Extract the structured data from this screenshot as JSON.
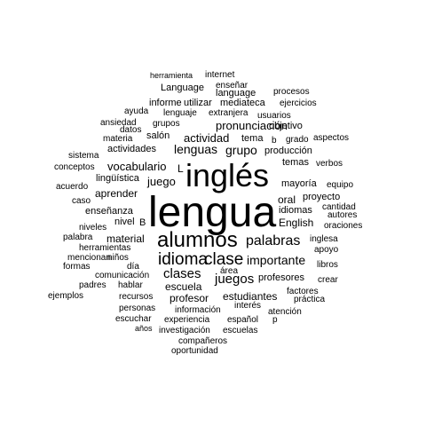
{
  "text_color": "#000000",
  "background": "#ffffff",
  "words": [
    "lengua",
    "inglés",
    "alumnos",
    "idioma",
    "clase",
    "palabras",
    "importante",
    "clases",
    "juegos",
    "escuela",
    "estudiantes",
    "profesor",
    "profesores",
    "actividad",
    "lenguas",
    "grupo",
    "pronunciación",
    "vocabulario",
    "juego",
    "aprender",
    "enseñanza",
    "material",
    "actividades",
    "salón",
    "tema",
    "mayoría",
    "oral",
    "English",
    "idiomas",
    "lingüística",
    "producción",
    "objetivo",
    "internet",
    "herramienta",
    "enseñar",
    "Language",
    "language",
    "procesos",
    "informe",
    "utilizar",
    "mediateca",
    "ejercicios",
    "ayuda",
    "lenguaje",
    "extranjera",
    "usuarios",
    "ansiedad",
    "grupos",
    "datos",
    "materia",
    "grado",
    "aspectos",
    "sistema",
    "temas",
    "verbos",
    "conceptos",
    "L",
    "acuerdo",
    "equipo",
    "proyecto",
    "caso",
    "cantidad",
    "autores",
    "nivel",
    "B",
    "niveles",
    "oraciones",
    "palabra",
    "inglesa",
    "herramientas",
    "apoyo",
    "mencionan",
    "niños",
    "libros",
    "formas",
    "día",
    "área",
    "comunicación",
    "crear",
    "padres",
    "hablar",
    "factores",
    "ejemplos",
    "recursos",
    "interés",
    "práctica",
    "personas",
    "información",
    "atención",
    "escuchar",
    "experiencia",
    "español",
    "p",
    "años",
    "investigación",
    "escuelas",
    "compañeros",
    "oportunidad",
    "b"
  ]
}
